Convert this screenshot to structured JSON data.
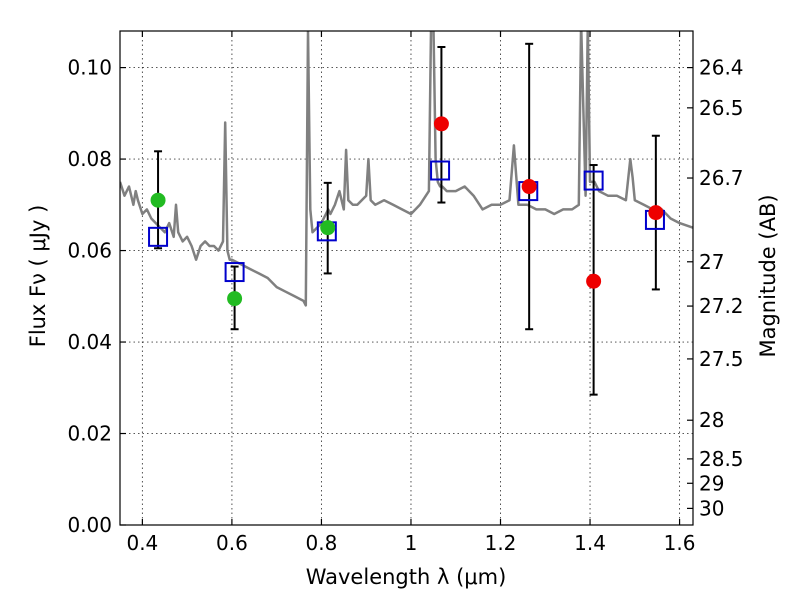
{
  "chart_data": {
    "type": "scatter",
    "title": "",
    "xlabel": "Wavelength  λ (μm)",
    "ylabel": "Flux  Fν  ( μJy )",
    "y2label": "Magnitude (AB)",
    "xlim": [
      0.35,
      1.63
    ],
    "ylim": [
      0.0,
      0.108
    ],
    "grid": true,
    "x_ticks": [
      "0.4",
      "0.6",
      "0.8",
      "1",
      "1.2",
      "1.4",
      "1.6"
    ],
    "x_tick_values": [
      0.4,
      0.6,
      0.8,
      1.0,
      1.2,
      1.4,
      1.6
    ],
    "y_ticks": [
      "0.00",
      "0.02",
      "0.04",
      "0.06",
      "0.08",
      "0.10"
    ],
    "y_tick_values": [
      0.0,
      0.02,
      0.04,
      0.06,
      0.08,
      0.1
    ],
    "y2_ticks": [
      {
        "label": "26.4",
        "mag": 26.4
      },
      {
        "label": "26.5",
        "mag": 26.5
      },
      {
        "label": "26.7",
        "mag": 26.7
      },
      {
        "label": "27",
        "mag": 27.0
      },
      {
        "label": "27.2",
        "mag": 27.2
      },
      {
        "label": "27.5",
        "mag": 27.5
      },
      {
        "label": "28",
        "mag": 28.0
      },
      {
        "label": "28.5",
        "mag": 28.5
      },
      {
        "label": "29",
        "mag": 29.0
      },
      {
        "label": "30",
        "mag": 30.0
      }
    ],
    "colors": {
      "model": "#808080",
      "model_photometry": "#0000cc",
      "ground_detections": "#22bb22",
      "hst_detections": "#ee0000",
      "errorbar": "#000000"
    },
    "series": [
      {
        "x": [
          0.35,
          0.36,
          0.37,
          0.38,
          0.385,
          0.39,
          0.4,
          0.41,
          0.42,
          0.43,
          0.44,
          0.45,
          0.46,
          0.47,
          0.475,
          0.48,
          0.49,
          0.5,
          0.51,
          0.52,
          0.53,
          0.54,
          0.55,
          0.56,
          0.57,
          0.58,
          0.585,
          0.59,
          0.595,
          0.6,
          0.62,
          0.64,
          0.66,
          0.68,
          0.7,
          0.72,
          0.74,
          0.76,
          0.765,
          0.77,
          0.775,
          0.78,
          0.79,
          0.8,
          0.81,
          0.815,
          0.82,
          0.83,
          0.84,
          0.85,
          0.855,
          0.86,
          0.87,
          0.88,
          0.9,
          0.905,
          0.91,
          0.92,
          0.94,
          0.96,
          0.98,
          1.0,
          1.02,
          1.04,
          1.045,
          1.05,
          1.055,
          1.06,
          1.065,
          1.07,
          1.08,
          1.1,
          1.12,
          1.14,
          1.16,
          1.18,
          1.2,
          1.22,
          1.23,
          1.24,
          1.26,
          1.28,
          1.3,
          1.32,
          1.34,
          1.36,
          1.375,
          1.38,
          1.39,
          1.395,
          1.4,
          1.41,
          1.42,
          1.44,
          1.46,
          1.48,
          1.49,
          1.495,
          1.5,
          1.52,
          1.54,
          1.56,
          1.58,
          1.6,
          1.63
        ],
        "y": [
          0.075,
          0.072,
          0.074,
          0.07,
          0.073,
          0.071,
          0.068,
          0.069,
          0.067,
          0.066,
          0.065,
          0.064,
          0.066,
          0.063,
          0.07,
          0.064,
          0.062,
          0.063,
          0.061,
          0.058,
          0.061,
          0.062,
          0.061,
          0.061,
          0.06,
          0.062,
          0.088,
          0.06,
          0.058,
          0.058,
          0.057,
          0.056,
          0.055,
          0.054,
          0.052,
          0.051,
          0.05,
          0.049,
          0.048,
          0.108,
          0.069,
          0.064,
          0.065,
          0.066,
          0.068,
          0.069,
          0.068,
          0.07,
          0.073,
          0.069,
          0.082,
          0.071,
          0.07,
          0.07,
          0.072,
          0.08,
          0.071,
          0.07,
          0.071,
          0.07,
          0.069,
          0.068,
          0.07,
          0.073,
          0.11,
          0.11,
          0.08,
          0.075,
          0.074,
          0.074,
          0.073,
          0.073,
          0.074,
          0.072,
          0.069,
          0.07,
          0.07,
          0.071,
          0.083,
          0.07,
          0.07,
          0.069,
          0.069,
          0.068,
          0.069,
          0.069,
          0.07,
          0.11,
          0.072,
          0.11,
          0.075,
          0.075,
          0.073,
          0.072,
          0.072,
          0.071,
          0.08,
          0.076,
          0.071,
          0.07,
          0.069,
          0.069,
          0.067,
          0.066,
          0.065
        ]
      },
      {
        "x": [
          0.435,
          0.606,
          0.812,
          1.065,
          1.262,
          1.408,
          1.545
        ],
        "y": [
          0.063,
          0.0553,
          0.0642,
          0.0775,
          0.073,
          0.0753,
          0.0667
        ]
      },
      {
        "x": [
          0.435,
          0.606,
          0.814
        ],
        "y": [
          0.071,
          0.0495,
          0.065
        ],
        "err_lo": [
          0.0605,
          0.0428,
          0.055
        ],
        "err_hi": [
          0.0817,
          0.0565,
          0.0748
        ]
      },
      {
        "x": [
          1.068,
          1.264,
          1.408,
          1.547
        ],
        "y": [
          0.0877,
          0.074,
          0.0533,
          0.0683
        ],
        "err_lo": [
          0.0705,
          0.0428,
          0.0285,
          0.0515
        ],
        "err_hi": [
          0.1045,
          0.1052,
          0.0787,
          0.0851
        ]
      }
    ]
  }
}
